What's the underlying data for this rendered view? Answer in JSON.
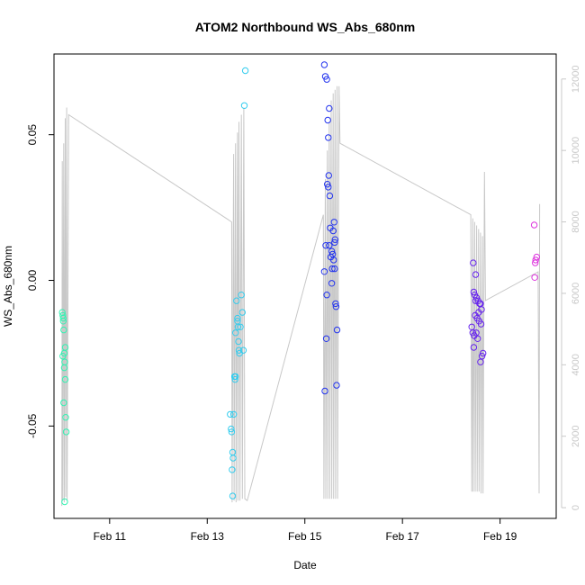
{
  "chart_data": {
    "type": "scatter",
    "title": "ATOM2 Northbound WS_Abs_680nm",
    "xlabel": "Date",
    "ylabel": "WS_Abs_680nm",
    "x_ticks": [
      {
        "label": "Feb 11",
        "day": 11
      },
      {
        "label": "Feb 13",
        "day": 13
      },
      {
        "label": "Feb 15",
        "day": 15
      },
      {
        "label": "Feb 17",
        "day": 17
      },
      {
        "label": "Feb 19",
        "day": 19
      }
    ],
    "y_ticks": [
      {
        "label": "-0.05",
        "value": -0.05
      },
      {
        "label": "0.00",
        "value": 0.0
      },
      {
        "label": "0.05",
        "value": 0.05
      }
    ],
    "y2_ticks": [
      {
        "label": "0",
        "value": 0
      },
      {
        "label": "2000",
        "value": 2000
      },
      {
        "label": "4000",
        "value": 4000
      },
      {
        "label": "6000",
        "value": 6000
      },
      {
        "label": "8000",
        "value": 8000
      },
      {
        "label": "10000",
        "value": 10000
      },
      {
        "label": "12000",
        "value": 12000
      }
    ],
    "xlim": [
      9.86,
      20.15
    ],
    "ylim": [
      -0.0817,
      0.0777
    ],
    "y2lim": [
      -300,
      12700
    ],
    "colors": {
      "line": "#c8c8c8",
      "groups": [
        "#33f2b2",
        "#33ccee",
        "#2233ee",
        "#6622ee",
        "#dd33dd"
      ]
    },
    "series": [
      {
        "color": "#33f2b2",
        "points": [
          {
            "x": 10.03,
            "y": -0.011
          },
          {
            "x": 10.04,
            "y": -0.012
          },
          {
            "x": 10.05,
            "y": -0.013
          },
          {
            "x": 10.04,
            "y": -0.026
          },
          {
            "x": 10.06,
            "y": -0.017
          },
          {
            "x": 10.07,
            "y": -0.025
          },
          {
            "x": 10.08,
            "y": -0.028
          },
          {
            "x": 10.09,
            "y": -0.023
          },
          {
            "x": 10.07,
            "y": -0.03
          },
          {
            "x": 10.09,
            "y": -0.034
          },
          {
            "x": 10.06,
            "y": -0.042
          },
          {
            "x": 10.1,
            "y": -0.047
          },
          {
            "x": 10.11,
            "y": -0.052
          },
          {
            "x": 10.08,
            "y": -0.076
          },
          {
            "x": 10.05,
            "y": -0.014
          }
        ]
      },
      {
        "color": "#33ccee",
        "points": [
          {
            "x": 13.47,
            "y": -0.046
          },
          {
            "x": 13.49,
            "y": -0.051
          },
          {
            "x": 13.5,
            "y": -0.052
          },
          {
            "x": 13.52,
            "y": -0.059
          },
          {
            "x": 13.51,
            "y": -0.065
          },
          {
            "x": 13.53,
            "y": -0.061
          },
          {
            "x": 13.54,
            "y": -0.046
          },
          {
            "x": 13.52,
            "y": -0.074
          },
          {
            "x": 13.56,
            "y": -0.033
          },
          {
            "x": 13.57,
            "y": -0.034
          },
          {
            "x": 13.58,
            "y": -0.033
          },
          {
            "x": 13.6,
            "y": -0.007
          },
          {
            "x": 13.62,
            "y": -0.014
          },
          {
            "x": 13.63,
            "y": -0.016
          },
          {
            "x": 13.64,
            "y": -0.021
          },
          {
            "x": 13.65,
            "y": -0.024
          },
          {
            "x": 13.66,
            "y": -0.025
          },
          {
            "x": 13.68,
            "y": -0.016
          },
          {
            "x": 13.7,
            "y": -0.005
          },
          {
            "x": 13.72,
            "y": -0.011
          },
          {
            "x": 13.74,
            "y": -0.024
          },
          {
            "x": 13.76,
            "y": 0.06
          },
          {
            "x": 13.78,
            "y": 0.072
          },
          {
            "x": 13.58,
            "y": -0.018
          },
          {
            "x": 13.62,
            "y": -0.013
          }
        ]
      },
      {
        "color": "#2233ee",
        "points": [
          {
            "x": 15.4,
            "y": 0.074
          },
          {
            "x": 15.42,
            "y": 0.07
          },
          {
            "x": 15.45,
            "y": 0.069
          },
          {
            "x": 15.47,
            "y": 0.055
          },
          {
            "x": 15.5,
            "y": 0.059
          },
          {
            "x": 15.48,
            "y": 0.049
          },
          {
            "x": 15.46,
            "y": 0.033
          },
          {
            "x": 15.49,
            "y": 0.036
          },
          {
            "x": 15.48,
            "y": 0.032
          },
          {
            "x": 15.51,
            "y": 0.029
          },
          {
            "x": 15.6,
            "y": 0.02
          },
          {
            "x": 15.52,
            "y": 0.018
          },
          {
            "x": 15.58,
            "y": 0.017
          },
          {
            "x": 15.62,
            "y": 0.014
          },
          {
            "x": 15.61,
            "y": 0.013
          },
          {
            "x": 15.43,
            "y": 0.012
          },
          {
            "x": 15.5,
            "y": 0.012
          },
          {
            "x": 15.55,
            "y": 0.01
          },
          {
            "x": 15.57,
            "y": 0.009
          },
          {
            "x": 15.53,
            "y": 0.008
          },
          {
            "x": 15.59,
            "y": 0.007
          },
          {
            "x": 15.56,
            "y": 0.004
          },
          {
            "x": 15.61,
            "y": 0.004
          },
          {
            "x": 15.4,
            "y": 0.003
          },
          {
            "x": 15.55,
            "y": -0.001
          },
          {
            "x": 15.45,
            "y": -0.005
          },
          {
            "x": 15.63,
            "y": -0.008
          },
          {
            "x": 15.64,
            "y": -0.009
          },
          {
            "x": 15.66,
            "y": -0.017
          },
          {
            "x": 15.44,
            "y": -0.02
          },
          {
            "x": 15.65,
            "y": -0.036
          },
          {
            "x": 15.41,
            "y": -0.038
          }
        ]
      },
      {
        "color": "#6622ee",
        "points": [
          {
            "x": 18.45,
            "y": 0.006
          },
          {
            "x": 18.5,
            "y": 0.002
          },
          {
            "x": 18.46,
            "y": -0.004
          },
          {
            "x": 18.48,
            "y": -0.005
          },
          {
            "x": 18.52,
            "y": -0.006
          },
          {
            "x": 18.55,
            "y": -0.007
          },
          {
            "x": 18.58,
            "y": -0.008
          },
          {
            "x": 18.6,
            "y": -0.008
          },
          {
            "x": 18.62,
            "y": -0.01
          },
          {
            "x": 18.56,
            "y": -0.011
          },
          {
            "x": 18.49,
            "y": -0.012
          },
          {
            "x": 18.53,
            "y": -0.013
          },
          {
            "x": 18.57,
            "y": -0.014
          },
          {
            "x": 18.61,
            "y": -0.015
          },
          {
            "x": 18.42,
            "y": -0.016
          },
          {
            "x": 18.44,
            "y": -0.018
          },
          {
            "x": 18.47,
            "y": -0.019
          },
          {
            "x": 18.51,
            "y": -0.018
          },
          {
            "x": 18.54,
            "y": -0.02
          },
          {
            "x": 18.46,
            "y": -0.023
          },
          {
            "x": 18.65,
            "y": -0.025
          },
          {
            "x": 18.63,
            "y": -0.026
          },
          {
            "x": 18.6,
            "y": -0.028
          },
          {
            "x": 18.5,
            "y": -0.007
          }
        ]
      },
      {
        "color": "#dd33dd",
        "points": [
          {
            "x": 19.7,
            "y": 0.019
          },
          {
            "x": 19.75,
            "y": 0.008
          },
          {
            "x": 19.73,
            "y": 0.007
          },
          {
            "x": 19.72,
            "y": 0.006
          },
          {
            "x": 19.71,
            "y": 0.001
          }
        ]
      }
    ],
    "line_series": [
      [
        10.02,
        50
      ],
      [
        10.03,
        9700
      ],
      [
        10.04,
        200
      ],
      [
        10.06,
        10200
      ],
      [
        10.07,
        150
      ],
      [
        10.09,
        10900
      ],
      [
        10.1,
        300
      ],
      [
        10.12,
        11200
      ],
      [
        10.13,
        200
      ],
      [
        10.16,
        11000
      ],
      [
        13.5,
        8000
      ],
      [
        13.51,
        150
      ],
      [
        13.54,
        9900
      ],
      [
        13.55,
        200
      ],
      [
        13.58,
        10200
      ],
      [
        13.59,
        150
      ],
      [
        13.62,
        10500
      ],
      [
        13.63,
        200
      ],
      [
        13.65,
        10800
      ],
      [
        13.67,
        200
      ],
      [
        13.7,
        11000
      ],
      [
        13.72,
        250
      ],
      [
        13.75,
        11200
      ],
      [
        13.77,
        250
      ],
      [
        13.82,
        200
      ],
      [
        15.38,
        8200
      ],
      [
        15.39,
        250
      ],
      [
        15.42,
        9200
      ],
      [
        15.43,
        250
      ],
      [
        15.46,
        10000
      ],
      [
        15.47,
        250
      ],
      [
        15.5,
        10800
      ],
      [
        15.51,
        250
      ],
      [
        15.54,
        11400
      ],
      [
        15.55,
        250
      ],
      [
        15.58,
        11600
      ],
      [
        15.59,
        250
      ],
      [
        15.62,
        11700
      ],
      [
        15.63,
        250
      ],
      [
        15.66,
        11800
      ],
      [
        15.67,
        250
      ],
      [
        15.7,
        11800
      ],
      [
        15.72,
        10200
      ],
      [
        18.4,
        8200
      ],
      [
        18.42,
        450
      ],
      [
        18.44,
        8100
      ],
      [
        18.45,
        450
      ],
      [
        18.48,
        8000
      ],
      [
        18.49,
        450
      ],
      [
        18.52,
        7900
      ],
      [
        18.53,
        450
      ],
      [
        18.56,
        7800
      ],
      [
        18.57,
        450
      ],
      [
        18.6,
        7700
      ],
      [
        18.61,
        400
      ],
      [
        18.64,
        7600
      ],
      [
        18.65,
        400
      ],
      [
        18.68,
        9400
      ],
      [
        18.7,
        5800
      ],
      [
        19.78,
        6600
      ],
      [
        19.8,
        400
      ],
      [
        19.81,
        8500
      ]
    ]
  }
}
